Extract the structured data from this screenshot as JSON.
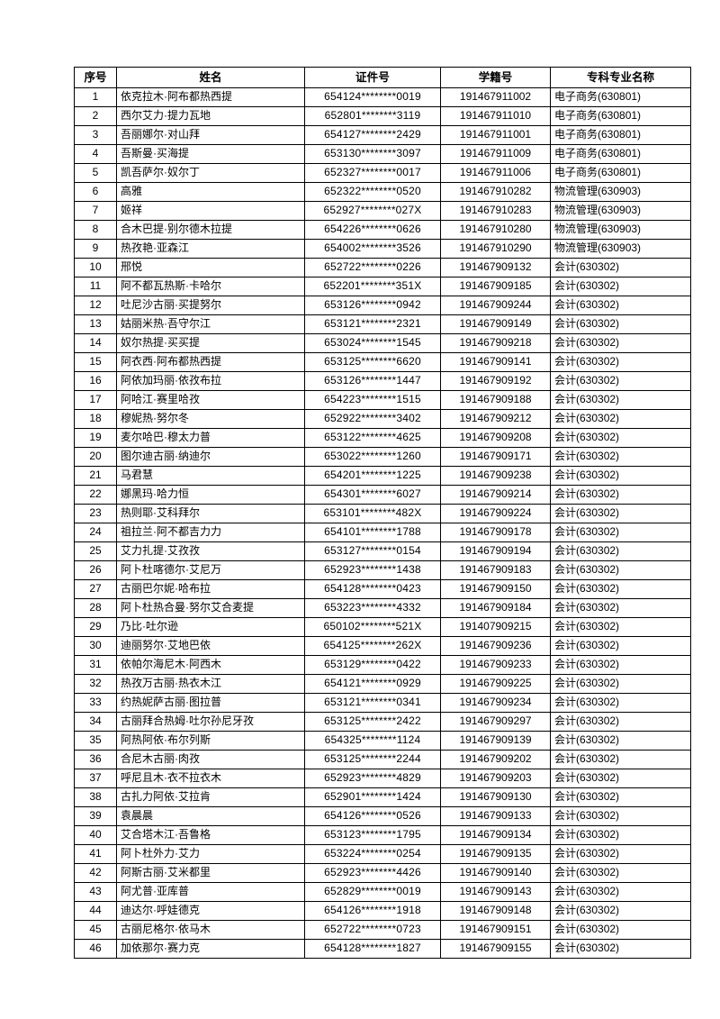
{
  "page": {
    "background_color": "#ffffff",
    "text_color": "#000000",
    "border_color": "#000000"
  },
  "table": {
    "columns": [
      "序号",
      "姓名",
      "证件号",
      "学籍号",
      "专科专业名称"
    ],
    "rows": [
      {
        "no": "1",
        "name": "依克拉木·阿布都热西提",
        "id": "654124********0019",
        "student_no": "191467911002",
        "major": "电子商务(630801)"
      },
      {
        "no": "2",
        "name": "西尔艾力·提力瓦地",
        "id": "652801********3119",
        "student_no": "191467911010",
        "major": "电子商务(630801)"
      },
      {
        "no": "3",
        "name": "吾丽娜尔·对山拜",
        "id": "654127********2429",
        "student_no": "191467911001",
        "major": "电子商务(630801)"
      },
      {
        "no": "4",
        "name": "吾斯曼·买海提",
        "id": "653130********3097",
        "student_no": "191467911009",
        "major": "电子商务(630801)"
      },
      {
        "no": "5",
        "name": "凯吾萨尔·奴尔丁",
        "id": "652327********0017",
        "student_no": "191467911006",
        "major": "电子商务(630801)"
      },
      {
        "no": "6",
        "name": "高雅",
        "id": "652322********0520",
        "student_no": "191467910282",
        "major": "物流管理(630903)"
      },
      {
        "no": "7",
        "name": "姬祥",
        "id": "652927********027X",
        "student_no": "191467910283",
        "major": "物流管理(630903)"
      },
      {
        "no": "8",
        "name": "合木巴提·别尔德木拉提",
        "id": "654226********0626",
        "student_no": "191467910280",
        "major": "物流管理(630903)"
      },
      {
        "no": "9",
        "name": "热孜艳·亚森江",
        "id": "654002********3526",
        "student_no": "191467910290",
        "major": "物流管理(630903)"
      },
      {
        "no": "10",
        "name": "邢悦",
        "id": "652722********0226",
        "student_no": "191467909132",
        "major": "会计(630302)"
      },
      {
        "no": "11",
        "name": "阿不都瓦热斯·卡哈尔",
        "id": "652201********351X",
        "student_no": "191467909185",
        "major": "会计(630302)"
      },
      {
        "no": "12",
        "name": "吐尼沙古丽·买提努尔",
        "id": "653126********0942",
        "student_no": "191467909244",
        "major": "会计(630302)"
      },
      {
        "no": "13",
        "name": "姑丽米热·吾守尔江",
        "id": "653121********2321",
        "student_no": "191467909149",
        "major": "会计(630302)"
      },
      {
        "no": "14",
        "name": "奴尔热提·买买提",
        "id": "653024********1545",
        "student_no": "191467909218",
        "major": "会计(630302)"
      },
      {
        "no": "15",
        "name": "阿衣西·阿布都热西提",
        "id": "653125********6620",
        "student_no": "191467909141",
        "major": "会计(630302)"
      },
      {
        "no": "16",
        "name": "阿依加玛丽·依孜布拉",
        "id": "653126********1447",
        "student_no": "191467909192",
        "major": "会计(630302)"
      },
      {
        "no": "17",
        "name": "阿哈江·赛里哈孜",
        "id": "654223********1515",
        "student_no": "191467909188",
        "major": "会计(630302)"
      },
      {
        "no": "18",
        "name": "穆妮热·努尔冬",
        "id": "652922********3402",
        "student_no": "191467909212",
        "major": "会计(630302)"
      },
      {
        "no": "19",
        "name": "麦尔哈巴·穆太力普",
        "id": "653122********4625",
        "student_no": "191467909208",
        "major": "会计(630302)"
      },
      {
        "no": "20",
        "name": "图尔迪古丽·纳迪尔",
        "id": "653022********1260",
        "student_no": "191467909171",
        "major": "会计(630302)"
      },
      {
        "no": "21",
        "name": "马君慧",
        "id": "654201********1225",
        "student_no": "191467909238",
        "major": "会计(630302)"
      },
      {
        "no": "22",
        "name": "娜黑玛·哈力恒",
        "id": "654301********6027",
        "student_no": "191467909214",
        "major": "会计(630302)"
      },
      {
        "no": "23",
        "name": "热则耶·艾科拜尔",
        "id": "653101********482X",
        "student_no": "191467909224",
        "major": "会计(630302)"
      },
      {
        "no": "24",
        "name": "祖拉兰·阿不都吉力力",
        "id": "654101********1788",
        "student_no": "191467909178",
        "major": "会计(630302)"
      },
      {
        "no": "25",
        "name": "艾力扎提·艾孜孜",
        "id": "653127********0154",
        "student_no": "191467909194",
        "major": "会计(630302)"
      },
      {
        "no": "26",
        "name": "阿卜杜喀德尔·艾尼万",
        "id": "652923********1438",
        "student_no": "191467909183",
        "major": "会计(630302)"
      },
      {
        "no": "27",
        "name": "古丽巴尔妮·哈布拉",
        "id": "654128********0423",
        "student_no": "191467909150",
        "major": "会计(630302)"
      },
      {
        "no": "28",
        "name": "阿卜杜热合曼·努尔艾合麦提",
        "id": "653223********4332",
        "student_no": "191467909184",
        "major": "会计(630302)"
      },
      {
        "no": "29",
        "name": "乃比·吐尔逊",
        "id": "650102********521X",
        "student_no": "191407909215",
        "major": "会计(630302)"
      },
      {
        "no": "30",
        "name": "迪丽努尔·艾地巴依",
        "id": "654125********262X",
        "student_no": "191467909236",
        "major": "会计(630302)"
      },
      {
        "no": "31",
        "name": "依帕尔海尼木·阿西木",
        "id": "653129********0422",
        "student_no": "191467909233",
        "major": "会计(630302)"
      },
      {
        "no": "32",
        "name": "热孜万古丽·热衣木江",
        "id": "654121********0929",
        "student_no": "191467909225",
        "major": "会计(630302)"
      },
      {
        "no": "33",
        "name": "约热妮萨古丽·图拉普",
        "id": "653121********0341",
        "student_no": "191467909234",
        "major": "会计(630302)"
      },
      {
        "no": "34",
        "name": "古丽拜合热姆·吐尔孙尼牙孜",
        "id": "653125********2422",
        "student_no": "191467909297",
        "major": "会计(630302)"
      },
      {
        "no": "35",
        "name": "阿热阿依·布尔列斯",
        "id": "654325********1124",
        "student_no": "191467909139",
        "major": "会计(630302)"
      },
      {
        "no": "36",
        "name": "合尼木古丽·肉孜",
        "id": "653125********2244",
        "student_no": "191467909202",
        "major": "会计(630302)"
      },
      {
        "no": "37",
        "name": "呼尼且木·衣不拉衣木",
        "id": "652923********4829",
        "student_no": "191467909203",
        "major": "会计(630302)"
      },
      {
        "no": "38",
        "name": "古扎力阿依·艾拉肯",
        "id": "652901********1424",
        "student_no": "191467909130",
        "major": "会计(630302)"
      },
      {
        "no": "39",
        "name": "袁晨晨",
        "id": "654126********0526",
        "student_no": "191467909133",
        "major": "会计(630302)"
      },
      {
        "no": "40",
        "name": "艾合塔木江·吾鲁格",
        "id": "653123********1795",
        "student_no": "191467909134",
        "major": "会计(630302)"
      },
      {
        "no": "41",
        "name": "阿卜杜外力·艾力",
        "id": "653224********0254",
        "student_no": "191467909135",
        "major": "会计(630302)"
      },
      {
        "no": "42",
        "name": "阿斯古丽·艾米都里",
        "id": "652923********4426",
        "student_no": "191467909140",
        "major": "会计(630302)"
      },
      {
        "no": "43",
        "name": "阿尤普·亚库普",
        "id": "652829********0019",
        "student_no": "191467909143",
        "major": "会计(630302)"
      },
      {
        "no": "44",
        "name": "迪达尔·呼娃德克",
        "id": "654126********1918",
        "student_no": "191467909148",
        "major": "会计(630302)"
      },
      {
        "no": "45",
        "name": "古丽尼格尔·依马木",
        "id": "652722********0723",
        "student_no": "191467909151",
        "major": "会计(630302)"
      },
      {
        "no": "46",
        "name": "加依那尔·赛力克",
        "id": "654128********1827",
        "student_no": "191467909155",
        "major": "会计(630302)"
      }
    ]
  }
}
